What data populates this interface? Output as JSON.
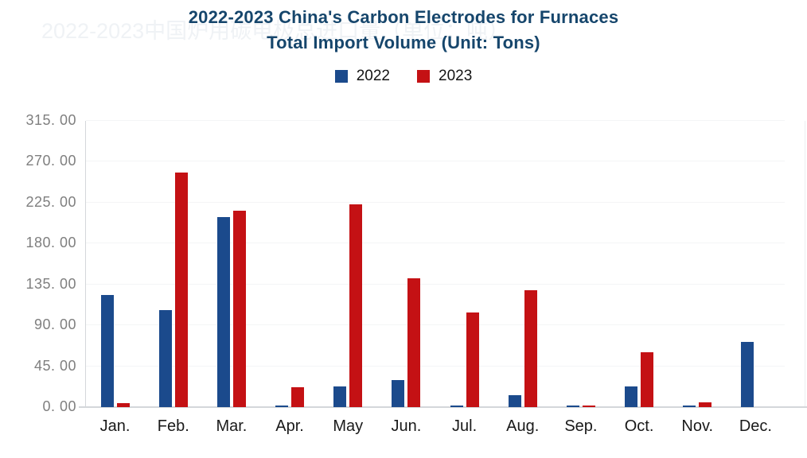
{
  "watermark": {
    "text": "2022-2023中国炉用碳电极总进口量（单位：吨）"
  },
  "title": {
    "line1": "2022-2023 China's Carbon Electrodes for Furnaces",
    "line2": "Total Import Volume (Unit: Tons)"
  },
  "legend": {
    "items": [
      {
        "label": "2022",
        "color": "#1B4A8C"
      },
      {
        "label": "2023",
        "color": "#C41114"
      }
    ]
  },
  "colors": {
    "title": "#16466C",
    "series_2022": "#1B4A8C",
    "series_2023": "#C41114",
    "axis_line": "#D4D7DA",
    "gridline": "#F4F5F6",
    "y_tick_text": "#7F7F7F",
    "x_tick_text": "#1A1A1A"
  },
  "chart_data": {
    "type": "bar",
    "title": "2022-2023 China's Carbon Electrodes for Furnaces Total Import Volume (Unit: Tons)",
    "xlabel": "",
    "ylabel": "",
    "categories": [
      "Jan.",
      "Feb.",
      "Mar.",
      "Apr.",
      "May",
      "Jun.",
      "Jul.",
      "Aug.",
      "Sep.",
      "Oct.",
      "Nov.",
      "Dec."
    ],
    "series": [
      {
        "name": "2022",
        "color": "#1B4A8C",
        "values": [
          123,
          107,
          209,
          2,
          23,
          30,
          2,
          13,
          2,
          23,
          2,
          72
        ]
      },
      {
        "name": "2023",
        "color": "#C41114",
        "values": [
          4,
          258,
          216,
          22,
          223,
          142,
          104,
          129,
          2,
          60,
          5,
          0
        ]
      }
    ],
    "ylim": [
      0,
      315
    ],
    "ytick_step": 45,
    "ytick_labels": [
      "0. 00",
      "45. 00",
      "90. 00",
      "135. 00",
      "180. 00",
      "225. 00",
      "270. 00",
      "315. 00"
    ],
    "grid": true,
    "legend_position": "top-center"
  }
}
